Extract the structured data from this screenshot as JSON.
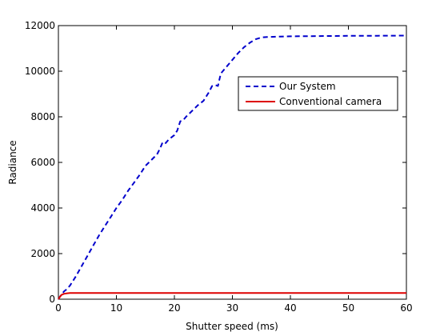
{
  "chart_data": {
    "type": "line",
    "title": "",
    "xlabel": "Shutter speed (ms)",
    "ylabel": "Radiance",
    "xlim": [
      0,
      60
    ],
    "ylim": [
      0,
      12000
    ],
    "xticks": [
      0,
      10,
      20,
      30,
      40,
      50,
      60
    ],
    "yticks": [
      0,
      2000,
      4000,
      6000,
      8000,
      10000,
      12000
    ],
    "grid": false,
    "legend_position": "top-right",
    "series": [
      {
        "name": "Our System",
        "color": "#0000cc",
        "style": "dashed",
        "x": [
          0,
          0.5,
          1,
          1.5,
          2,
          3,
          4,
          5,
          6,
          7,
          8,
          9,
          10,
          11,
          12,
          13,
          14,
          15,
          16,
          17,
          17.5,
          18,
          18.5,
          19,
          20,
          20.5,
          21,
          21.5,
          22,
          23,
          24,
          25,
          26,
          26.5,
          27,
          27.5,
          28,
          29,
          30,
          31,
          32,
          33,
          34,
          35,
          36,
          38,
          40,
          45,
          50,
          55,
          60
        ],
        "y": [
          0,
          200,
          350,
          450,
          600,
          1000,
          1450,
          1900,
          2350,
          2800,
          3200,
          3600,
          4000,
          4350,
          4750,
          5100,
          5450,
          5850,
          6100,
          6350,
          6600,
          6900,
          6850,
          7000,
          7200,
          7400,
          7800,
          7850,
          8000,
          8250,
          8500,
          8700,
          9100,
          9350,
          9400,
          9350,
          9900,
          10200,
          10500,
          10800,
          11050,
          11250,
          11400,
          11480,
          11500,
          11520,
          11530,
          11540,
          11550,
          11555,
          11560
        ]
      },
      {
        "name": "Conventional camera",
        "color": "#dd0000",
        "style": "solid",
        "x": [
          0,
          0.3,
          0.6,
          1,
          1.5,
          2,
          5,
          10,
          20,
          30,
          40,
          50,
          60
        ],
        "y": [
          0,
          120,
          200,
          240,
          260,
          270,
          270,
          270,
          270,
          270,
          270,
          270,
          270
        ]
      }
    ]
  }
}
